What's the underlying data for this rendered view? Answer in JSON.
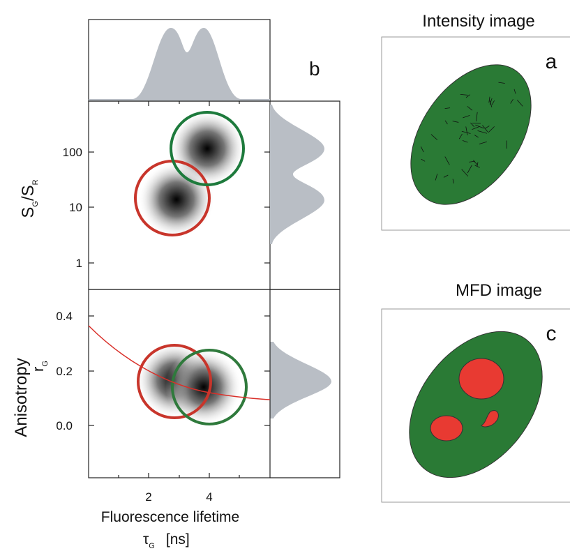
{
  "label_b": "b",
  "top_plot": {
    "y_label": "S",
    "y_label_sub1": "G",
    "y_label_mid": "/S",
    "y_label_sub2": "R",
    "y_ticks": [
      "100",
      "10",
      "1"
    ]
  },
  "bottom_plot": {
    "y_label": "Anisotropy",
    "y_label2": "r",
    "y_label2_sub": "G",
    "y_ticks": [
      "0.4",
      "0.2",
      "0.0"
    ],
    "x_ticks": [
      "2",
      "4"
    ],
    "x_label": "Fluorescence lifetime",
    "x_symbol": "τ",
    "x_symbol_sub": "G",
    "x_unit": "[ns]"
  },
  "intensity_image": {
    "title": "Intensity image",
    "label": "a"
  },
  "mfd_image": {
    "title": "MFD image",
    "label": "c"
  }
}
